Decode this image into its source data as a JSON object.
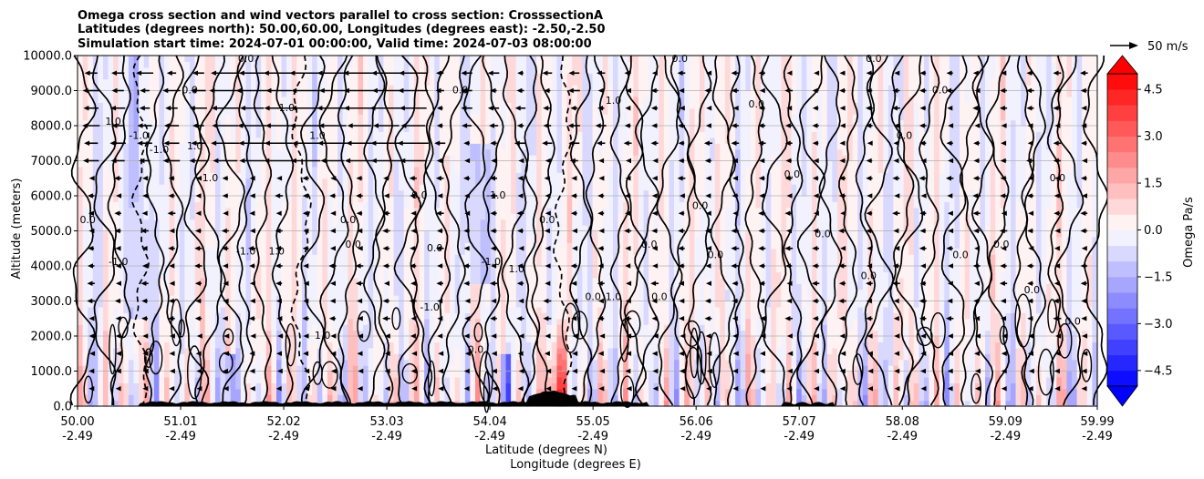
{
  "chart_data": {
    "type": "contour-cross-section",
    "title_lines": [
      "Omega cross section and wind vectors parallel to cross section: CrosssectionA",
      "Latitudes (degrees north): 50.00,60.00, Longitudes (degrees east): -2.50,-2.50",
      "Simulation start time: 2024-07-01 00:00:00, Valid time: 2024-07-03 08:00:00"
    ],
    "ylabel": "Altitude (meters)",
    "xlabel_lat": "Latitude (degrees N)",
    "xlabel_lon": "Longitude (degrees E)",
    "ylim": [
      0,
      10000
    ],
    "xlim": [
      50.0,
      59.99
    ],
    "y_ticks": [
      "0.0",
      "1000.0",
      "2000.0",
      "3000.0",
      "4000.0",
      "5000.0",
      "6000.0",
      "7000.0",
      "8000.0",
      "9000.0",
      "10000.0"
    ],
    "y_tick_values": [
      0,
      1000,
      2000,
      3000,
      4000,
      5000,
      6000,
      7000,
      8000,
      9000,
      10000
    ],
    "x_ticks": [
      {
        "lat": "50.00",
        "lon": "-2.49",
        "value": 50.0
      },
      {
        "lat": "51.01",
        "lon": "-2.49",
        "value": 51.01
      },
      {
        "lat": "52.02",
        "lon": "-2.49",
        "value": 52.02
      },
      {
        "lat": "53.03",
        "lon": "-2.49",
        "value": 53.03
      },
      {
        "lat": "54.04",
        "lon": "-2.49",
        "value": 54.04
      },
      {
        "lat": "55.05",
        "lon": "-2.49",
        "value": 55.05
      },
      {
        "lat": "56.06",
        "lon": "-2.49",
        "value": 56.06
      },
      {
        "lat": "57.07",
        "lon": "-2.49",
        "value": 57.07
      },
      {
        "lat": "58.08",
        "lon": "-2.49",
        "value": 58.08
      },
      {
        "lat": "59.09",
        "lon": "-2.49",
        "value": 59.09
      },
      {
        "lat": "59.99",
        "lon": "-2.49",
        "value": 59.99
      }
    ],
    "grid_horizontal": true,
    "colorbar": {
      "label": "Omega Pa/s",
      "range": [
        -5.0,
        5.0
      ],
      "ticks": [
        "4.5",
        "3.0",
        "1.5",
        "0.0",
        "−1.5",
        "−3.0",
        "−4.5"
      ],
      "tick_values": [
        4.5,
        3.0,
        1.5,
        0.0,
        -1.5,
        -3.0,
        -4.5
      ],
      "extend": "both",
      "levels": [
        -5.0,
        -4.5,
        -4.0,
        -3.5,
        -3.0,
        -2.5,
        -2.0,
        -1.5,
        -1.0,
        -0.5,
        0.0,
        0.5,
        1.0,
        1.5,
        2.0,
        2.5,
        3.0,
        3.5,
        4.0,
        4.5,
        5.0
      ],
      "low_color": "#0000ff",
      "mid_color": "#ffffff",
      "high_color": "#ff0000"
    },
    "quiver_key": {
      "label": "50 m/s",
      "speed": 50
    },
    "contour_levels_shown": [
      -1.0,
      0.0,
      1.0
    ],
    "contour_labels": [
      {
        "text": "0.0",
        "lat": 50.1,
        "alt": 5300
      },
      {
        "text": "-1.0",
        "lat": 50.4,
        "alt": 4100
      },
      {
        "text": "1.0",
        "lat": 50.35,
        "alt": 8100
      },
      {
        "text": "-1.0",
        "lat": 50.6,
        "alt": 7700
      },
      {
        "text": "-1.0",
        "lat": 50.8,
        "alt": 7300
      },
      {
        "text": "1.0",
        "lat": 51.15,
        "alt": 7400
      },
      {
        "text": "1.0",
        "lat": 51.3,
        "alt": 6500
      },
      {
        "text": "0.0",
        "lat": 51.1,
        "alt": 9000
      },
      {
        "text": "-1.0",
        "lat": 51.65,
        "alt": 4400
      },
      {
        "text": "1.0",
        "lat": 51.95,
        "alt": 4400
      },
      {
        "text": "1.0",
        "lat": 52.05,
        "alt": 8500
      },
      {
        "text": "1.0",
        "lat": 52.35,
        "alt": 7700
      },
      {
        "text": "0.0",
        "lat": 52.65,
        "alt": 5300
      },
      {
        "text": "0.0",
        "lat": 52.7,
        "alt": 4600
      },
      {
        "text": "1.0",
        "lat": 52.4,
        "alt": 2000
      },
      {
        "text": "0.0",
        "lat": 53.35,
        "alt": 6000
      },
      {
        "text": "0.0",
        "lat": 53.5,
        "alt": 4500
      },
      {
        "text": "0.0",
        "lat": 53.75,
        "alt": 9000
      },
      {
        "text": "0.0",
        "lat": 53.9,
        "alt": 1600
      },
      {
        "text": "-1.0",
        "lat": 53.45,
        "alt": 2800
      },
      {
        "text": "-1.0",
        "lat": 54.1,
        "alt": 6000
      },
      {
        "text": "-1.0",
        "lat": 54.05,
        "alt": 4100
      },
      {
        "text": "1.0",
        "lat": 54.3,
        "alt": 3900
      },
      {
        "text": "0.0",
        "lat": 54.6,
        "alt": 5300
      },
      {
        "text": "0.0",
        "lat": 55.05,
        "alt": 3100
      },
      {
        "text": "1.0",
        "lat": 55.25,
        "alt": 3100
      },
      {
        "text": "1.0",
        "lat": 55.25,
        "alt": 8700
      },
      {
        "text": "0.0",
        "lat": 55.6,
        "alt": 4600
      },
      {
        "text": "0.0",
        "lat": 55.7,
        "alt": 3100
      },
      {
        "text": "0.0",
        "lat": 56.1,
        "alt": 5700
      },
      {
        "text": "0.0",
        "lat": 56.25,
        "alt": 4300
      },
      {
        "text": "0.0",
        "lat": 56.65,
        "alt": 8600
      },
      {
        "text": "0.0",
        "lat": 57.0,
        "alt": 6600
      },
      {
        "text": "0.0",
        "lat": 57.3,
        "alt": 4900
      },
      {
        "text": "0.0",
        "lat": 57.75,
        "alt": 3700
      },
      {
        "text": "0.0",
        "lat": 58.1,
        "alt": 7700
      },
      {
        "text": "0.0",
        "lat": 58.45,
        "alt": 9000
      },
      {
        "text": "0.0",
        "lat": 58.65,
        "alt": 4300
      },
      {
        "text": "0.0",
        "lat": 59.05,
        "alt": 4600
      },
      {
        "text": "0.0",
        "lat": 59.35,
        "alt": 3300
      },
      {
        "text": "0.0",
        "lat": 59.6,
        "alt": 6500
      },
      {
        "text": "0.0",
        "lat": 59.75,
        "alt": 2400
      },
      {
        "text": "0.0",
        "lat": 51.65,
        "alt": 9900
      },
      {
        "text": "0.0",
        "lat": 55.9,
        "alt": 9900
      },
      {
        "text": "0.0",
        "lat": 57.8,
        "alt": 9900
      }
    ]
  }
}
